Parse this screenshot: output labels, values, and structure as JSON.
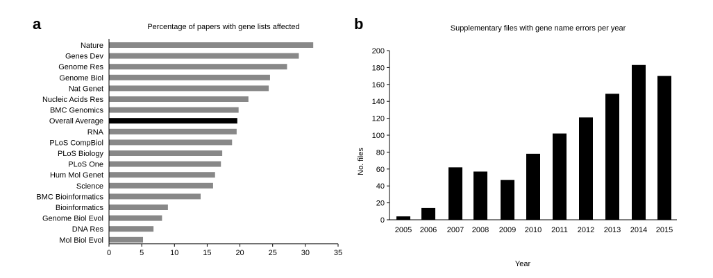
{
  "panel_a_label": "a",
  "panel_b_label": "b",
  "chart_data": [
    {
      "type": "bar",
      "orientation": "horizontal",
      "title": "Percentage of papers with gene lists affected",
      "xlabel": "",
      "ylabel": "",
      "xlim": [
        0,
        35
      ],
      "xticks": [
        0,
        5,
        10,
        15,
        20,
        25,
        30,
        35
      ],
      "categories": [
        "Nature",
        "Genes Dev",
        "Genome Res",
        "Genome Biol",
        "Nat Genet",
        "Nucleic Acids Res",
        "BMC Genomics",
        "Overall Average",
        "RNA",
        "PLoS CompBiol",
        "PLoS Biology",
        "PLoS One",
        "Hum Mol Genet",
        "Science",
        "BMC Bioinformatics",
        "Bioinformatics",
        "Genome Biol Evol",
        "DNA Res",
        "Mol Biol Evol"
      ],
      "values": [
        31.2,
        29.0,
        27.2,
        24.6,
        24.4,
        21.3,
        19.8,
        19.6,
        19.5,
        18.8,
        17.3,
        17.1,
        16.2,
        15.9,
        14.0,
        9.0,
        8.1,
        6.8,
        5.2
      ],
      "highlight_category": "Overall Average",
      "bar_color": "#888888",
      "highlight_color": "#000000",
      "grid": false
    },
    {
      "type": "bar",
      "title": "Supplementary files with gene name errors per year",
      "xlabel": "Year",
      "ylabel": "No. files",
      "ylim": [
        0,
        200
      ],
      "yticks": [
        0,
        20,
        40,
        60,
        80,
        100,
        120,
        140,
        160,
        180,
        200
      ],
      "categories": [
        "2005",
        "2006",
        "2007",
        "2008",
        "2009",
        "2010",
        "2011",
        "2012",
        "2013",
        "2014",
        "2015"
      ],
      "values": [
        4,
        14,
        62,
        57,
        47,
        78,
        102,
        121,
        149,
        183,
        170
      ],
      "bar_color": "#000000",
      "grid": false
    }
  ]
}
